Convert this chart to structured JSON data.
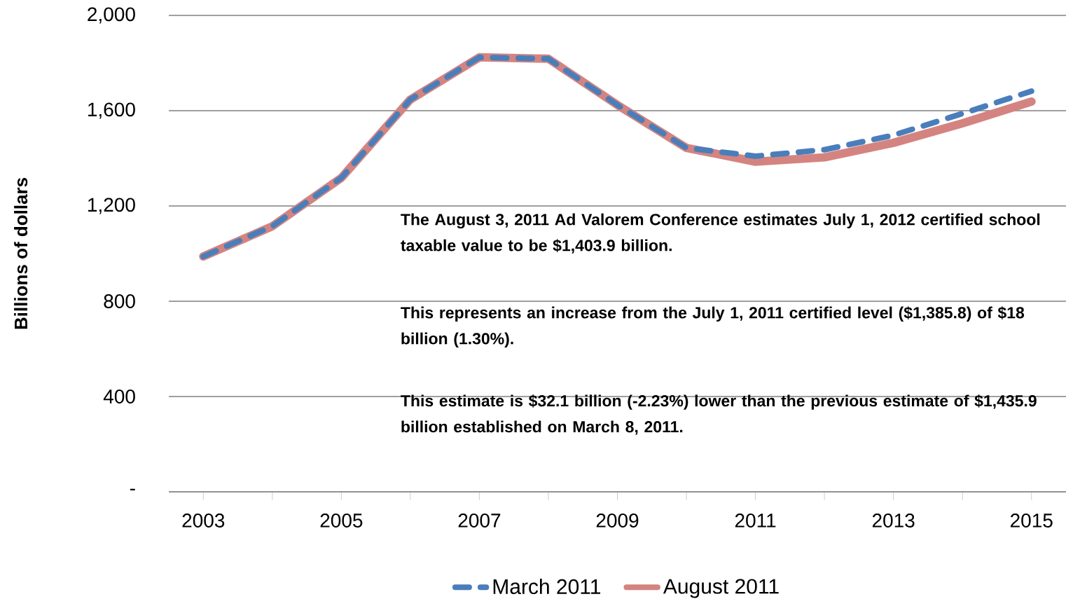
{
  "chart_data": {
    "type": "line",
    "ylabel": "Billions of dollars",
    "x": [
      2003,
      2004,
      2005,
      2006,
      2007,
      2008,
      2009,
      2010,
      2011,
      2012,
      2013,
      2014,
      2015
    ],
    "series": [
      {
        "name": "March 2011",
        "color": "#4a7ebb",
        "line_style": "dashed",
        "values": [
          988,
          1115,
          1318,
          1647,
          1824,
          1818,
          1624,
          1444,
          1409,
          1436,
          1497,
          1588,
          1682
        ]
      },
      {
        "name": "August 2011",
        "color": "#d48480",
        "line_style": "solid",
        "values": [
          988,
          1115,
          1318,
          1647,
          1824,
          1818,
          1624,
          1444,
          1386,
          1404,
          1465,
          1547,
          1638
        ]
      }
    ],
    "xlim": [
      2002.5,
      2015.5
    ],
    "xticks": [
      2003,
      {
        "value": 2004,
        "label": null
      },
      2005,
      {
        "value": 2006,
        "label": null
      },
      2007,
      {
        "value": 2008,
        "label": null
      },
      2009,
      {
        "value": 2010,
        "label": null
      },
      2011,
      {
        "value": 2012,
        "label": null
      },
      2013,
      {
        "value": 2014,
        "label": null
      },
      2015
    ],
    "ylim": [
      0,
      2000
    ],
    "yticks": [
      {
        "value": 0,
        "label": "-"
      },
      400,
      800,
      {
        "value": 1200,
        "label": "1,200"
      },
      {
        "value": 1600,
        "label": "1,600"
      },
      {
        "value": 2000,
        "label": "2,000"
      }
    ],
    "grid": "y",
    "legend": "bottom",
    "annotations": [
      "The August 3, 2011 Ad Valorem Conference estimates  July 1, 2012 certified school taxable value to be $1,403.9 billion.",
      "This represents an increase from the July 1, 2011 certified level ($1,385.8) of $18 billion (1.30%).",
      "This estimate is $32.1 billion (-2.23%) lower than the previous estimate of $1,435.9 billion established on March 8, 2011."
    ]
  }
}
